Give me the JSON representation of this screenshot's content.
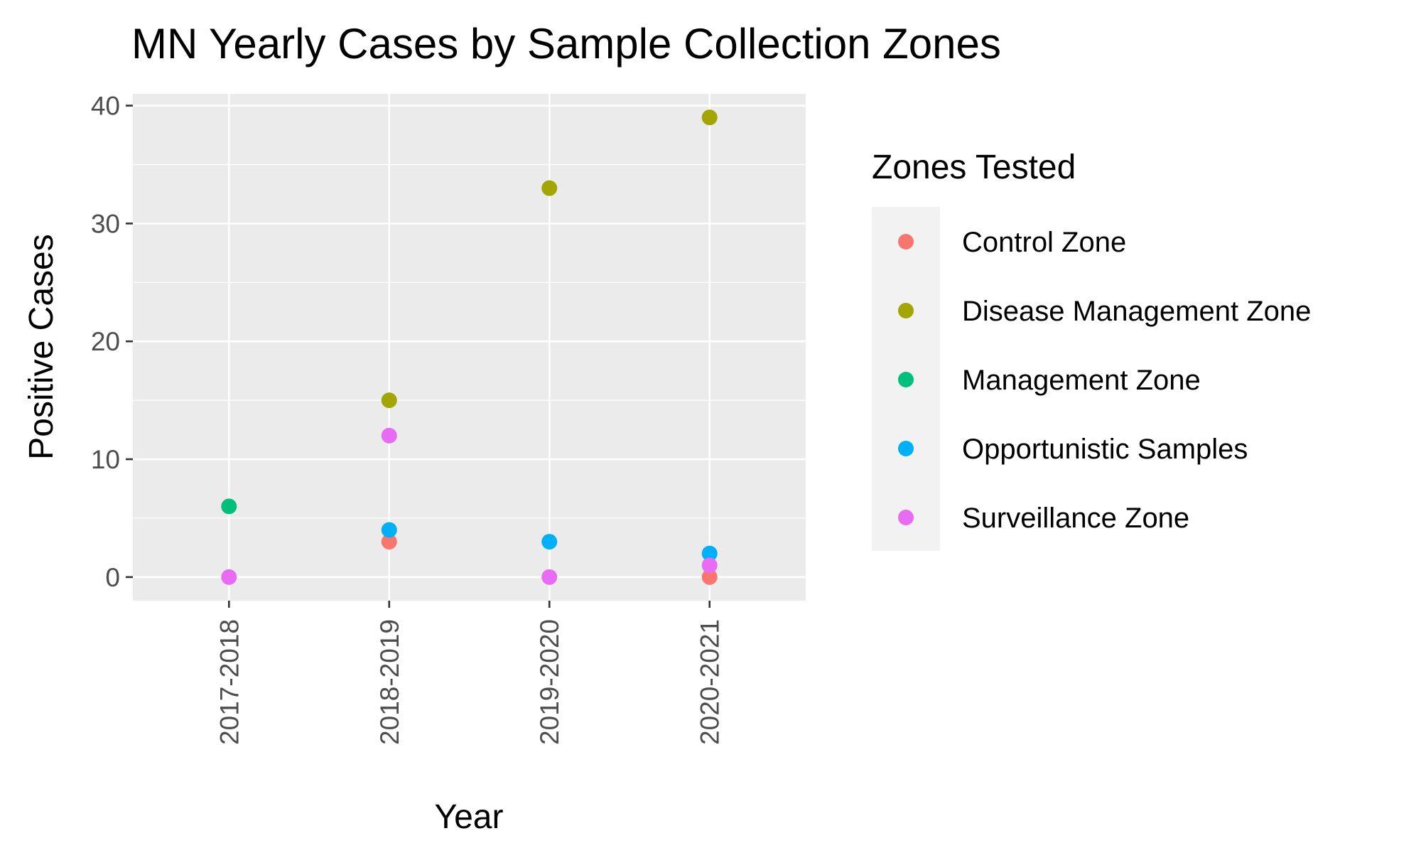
{
  "chart_data": {
    "type": "scatter",
    "title": "MN Yearly Cases by Sample Collection Zones",
    "xlabel": "Year",
    "ylabel": "Positive Cases",
    "categories": [
      "2017-2018",
      "2018-2019",
      "2019-2020",
      "2020-2021"
    ],
    "yticks": [
      "0",
      "10",
      "20",
      "30",
      "40"
    ],
    "ylim": [
      -2,
      41
    ],
    "grid": true,
    "legend": {
      "title": "Zones Tested",
      "position": "right"
    },
    "series": [
      {
        "name": "Control Zone",
        "color": "#F8766D",
        "values": [
          null,
          3,
          null,
          0
        ]
      },
      {
        "name": "Disease Management Zone",
        "color": "#A3A500",
        "values": [
          null,
          15,
          33,
          39
        ]
      },
      {
        "name": "Management Zone",
        "color": "#00BF7D",
        "values": [
          6,
          null,
          null,
          null
        ]
      },
      {
        "name": "Opportunistic Samples",
        "color": "#00B0F6",
        "values": [
          null,
          4,
          3,
          2
        ]
      },
      {
        "name": "Surveillance Zone",
        "color": "#E76BF3",
        "values": [
          0,
          12,
          0,
          1
        ]
      }
    ]
  }
}
